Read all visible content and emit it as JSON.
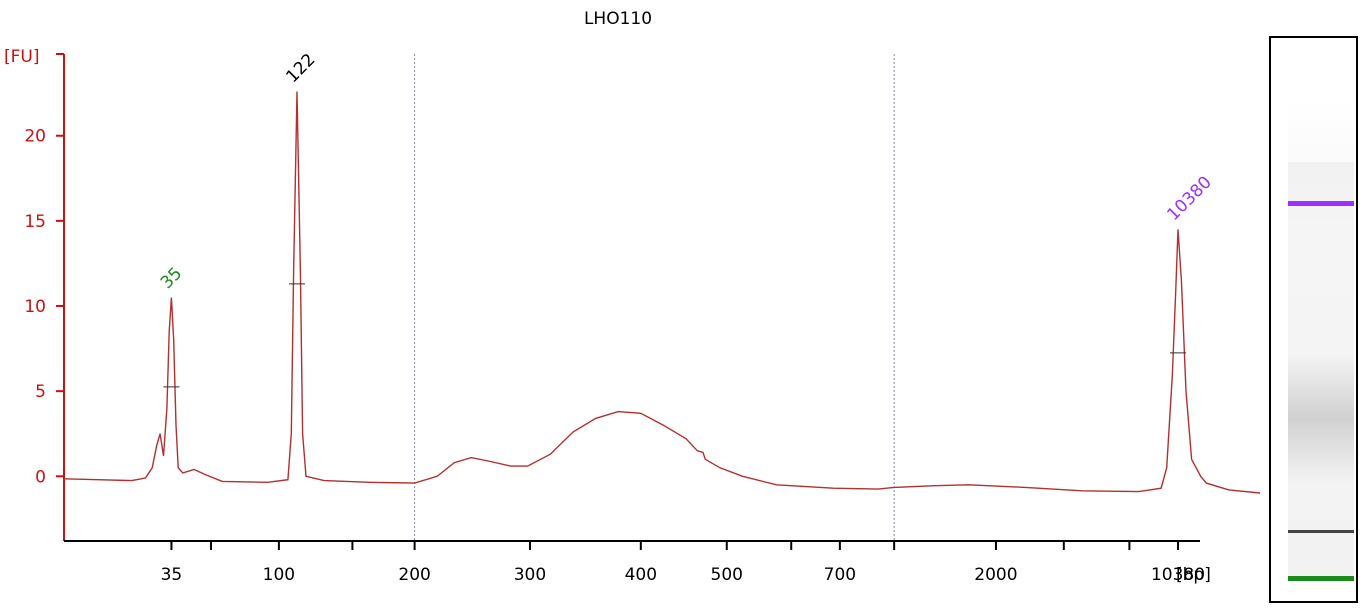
{
  "chart_data": {
    "type": "line",
    "title": "LHO110",
    "ylabel": "[FU]",
    "xlabel": "[bp]",
    "ylim": [
      -3.8,
      24.8
    ],
    "yticks": [
      0,
      5,
      10,
      15,
      20
    ],
    "xticks": [
      {
        "label": "35",
        "pos": 0.095
      },
      {
        "label": "",
        "pos": 0.13
      },
      {
        "label": "100",
        "pos": 0.19
      },
      {
        "label": "",
        "pos": 0.255
      },
      {
        "label": "200",
        "pos": 0.31
      },
      {
        "label": "300",
        "pos": 0.412
      },
      {
        "label": "400",
        "pos": 0.51
      },
      {
        "label": "500",
        "pos": 0.586
      },
      {
        "label": "",
        "pos": 0.643
      },
      {
        "label": "700",
        "pos": 0.686
      },
      {
        "label": "",
        "pos": 0.734
      },
      {
        "label": "2000",
        "pos": 0.824
      },
      {
        "label": "",
        "pos": 0.884
      },
      {
        "label": "",
        "pos": 0.942
      },
      {
        "label": "10380",
        "pos": 0.985
      }
    ],
    "vlines": [
      0.31,
      0.734
    ],
    "peaks": [
      {
        "label": "35",
        "pos": 0.095,
        "fu": 10.5,
        "color": "#1a8a1a"
      },
      {
        "label": "122",
        "pos": 0.206,
        "fu": 22.6,
        "color": "#000000"
      },
      {
        "label": "10380",
        "pos": 0.985,
        "fu": 14.5,
        "color": "#9b30ff"
      }
    ],
    "trace": [
      [
        0.0,
        -0.15
      ],
      [
        0.03,
        -0.2
      ],
      [
        0.06,
        -0.25
      ],
      [
        0.072,
        -0.1
      ],
      [
        0.078,
        0.5
      ],
      [
        0.082,
        1.8
      ],
      [
        0.085,
        2.5
      ],
      [
        0.088,
        1.2
      ],
      [
        0.091,
        4.0
      ],
      [
        0.093,
        8.5
      ],
      [
        0.095,
        10.5
      ],
      [
        0.097,
        8.0
      ],
      [
        0.099,
        3.0
      ],
      [
        0.101,
        0.5
      ],
      [
        0.105,
        0.2
      ],
      [
        0.115,
        0.4
      ],
      [
        0.125,
        0.1
      ],
      [
        0.14,
        -0.3
      ],
      [
        0.18,
        -0.35
      ],
      [
        0.198,
        -0.2
      ],
      [
        0.201,
        2.5
      ],
      [
        0.203,
        12.0
      ],
      [
        0.206,
        22.6
      ],
      [
        0.209,
        12.0
      ],
      [
        0.211,
        2.5
      ],
      [
        0.214,
        0.0
      ],
      [
        0.23,
        -0.25
      ],
      [
        0.27,
        -0.35
      ],
      [
        0.31,
        -0.4
      ],
      [
        0.33,
        0.0
      ],
      [
        0.345,
        0.8
      ],
      [
        0.36,
        1.1
      ],
      [
        0.375,
        0.9
      ],
      [
        0.395,
        0.6
      ],
      [
        0.41,
        0.6
      ],
      [
        0.43,
        1.3
      ],
      [
        0.45,
        2.6
      ],
      [
        0.47,
        3.4
      ],
      [
        0.49,
        3.8
      ],
      [
        0.51,
        3.7
      ],
      [
        0.53,
        3.0
      ],
      [
        0.55,
        2.2
      ],
      [
        0.56,
        1.5
      ],
      [
        0.565,
        1.4
      ],
      [
        0.567,
        1.0
      ],
      [
        0.58,
        0.5
      ],
      [
        0.6,
        0.0
      ],
      [
        0.63,
        -0.5
      ],
      [
        0.68,
        -0.7
      ],
      [
        0.72,
        -0.75
      ],
      [
        0.734,
        -0.65
      ],
      [
        0.77,
        -0.55
      ],
      [
        0.8,
        -0.5
      ],
      [
        0.85,
        -0.65
      ],
      [
        0.9,
        -0.85
      ],
      [
        0.95,
        -0.9
      ],
      [
        0.97,
        -0.7
      ],
      [
        0.975,
        0.5
      ],
      [
        0.98,
        6.0
      ],
      [
        0.983,
        11.0
      ],
      [
        0.985,
        14.5
      ],
      [
        0.988,
        11.5
      ],
      [
        0.992,
        5.0
      ],
      [
        0.997,
        1.0
      ],
      [
        1.005,
        0.0
      ],
      [
        1.01,
        -0.4
      ],
      [
        1.03,
        -0.8
      ],
      [
        1.06,
        -1.0
      ],
      [
        1.085,
        -1.1
      ]
    ],
    "grid": false
  },
  "gel": {
    "bands": [
      {
        "pos": 0.093,
        "color": "#9b30ff"
      },
      {
        "pos": 0.884,
        "color": "#444444"
      },
      {
        "pos": 0.995,
        "color": "#1a8a1a"
      }
    ],
    "smears": [
      {
        "pos": 0.615,
        "intensity": 0.28
      },
      {
        "pos": 0.01,
        "intensity": 0.04
      }
    ]
  },
  "colors": {
    "axis": "#cc1111",
    "trace": "#b23030",
    "vline": "#8a8aa0"
  }
}
